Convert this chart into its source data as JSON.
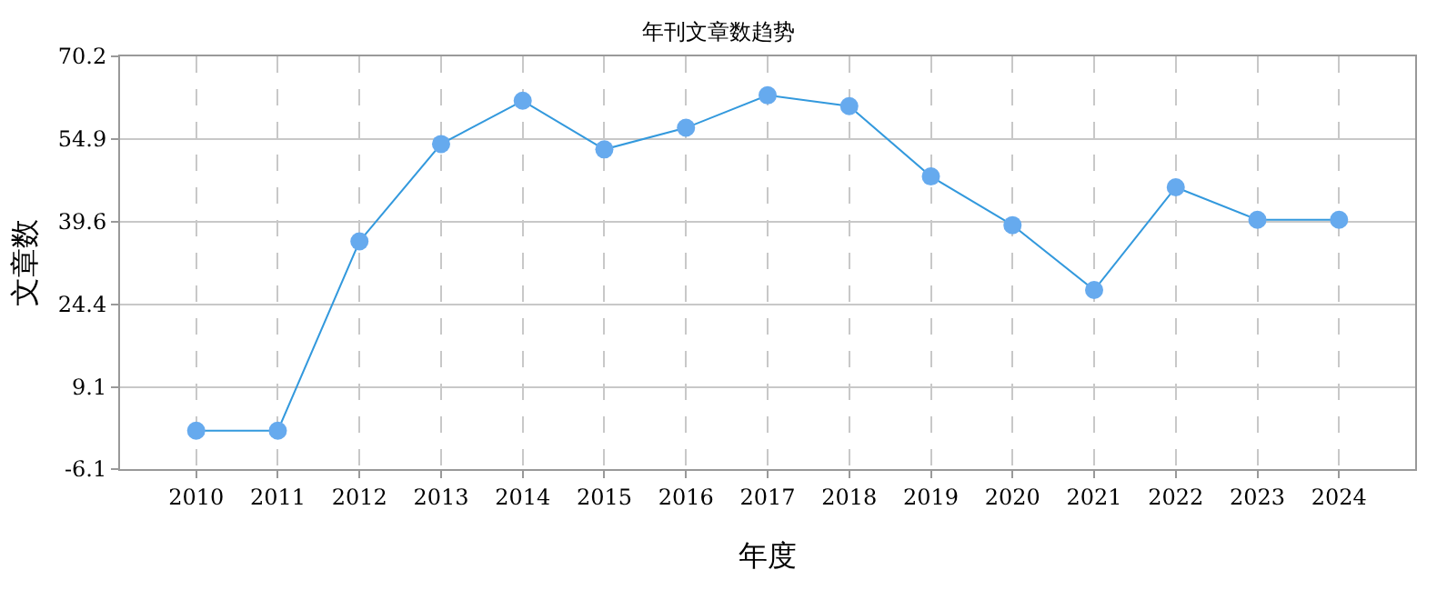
{
  "chart_data": {
    "type": "line",
    "title": "年刊文章数趋势",
    "xlabel": "年度",
    "ylabel": "文章数",
    "categories": [
      "2010",
      "2011",
      "2012",
      "2013",
      "2014",
      "2015",
      "2016",
      "2017",
      "2018",
      "2019",
      "2020",
      "2021",
      "2022",
      "2023",
      "2024"
    ],
    "series": [
      {
        "color": "#3399dd",
        "values": [
          1,
          1,
          36,
          54,
          62,
          53,
          57,
          63,
          61,
          48,
          39,
          27,
          46,
          40,
          40
        ]
      }
    ],
    "ylim": [
      -6.1,
      70.2
    ],
    "yticks": [
      -6.1,
      9.1,
      24.4,
      39.6,
      54.9,
      70.2
    ],
    "grid": true,
    "marker": "circle",
    "line_style": "solid",
    "legend": false
  }
}
